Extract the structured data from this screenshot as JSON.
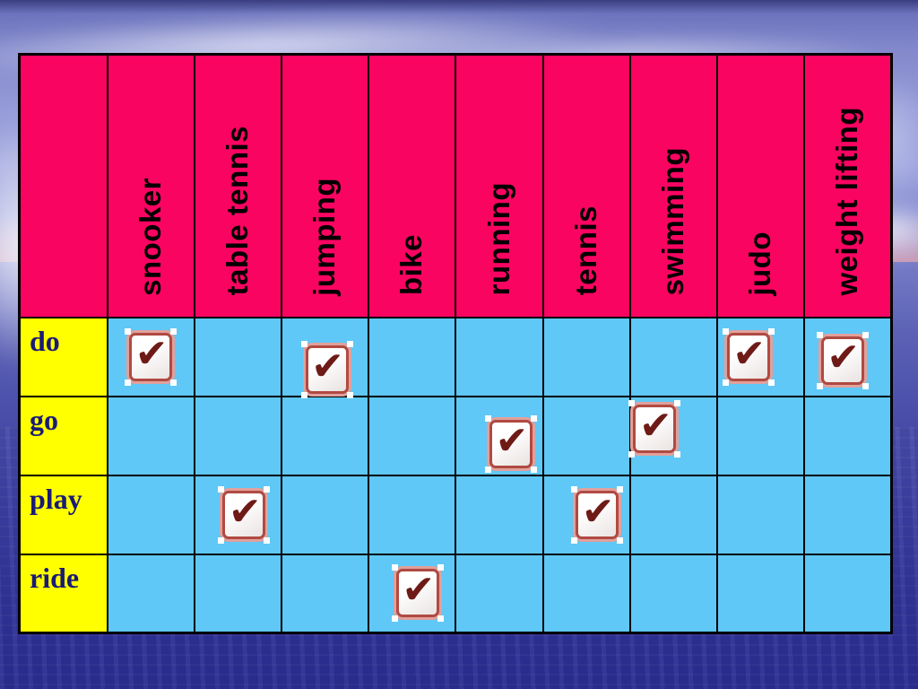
{
  "slide": {
    "background": {
      "sky_color": "#8288CB",
      "cloud_color": "#F0F2FC",
      "water_color": "#2B2D90"
    }
  },
  "table": {
    "colors": {
      "header_bg": "#FA0462",
      "body_bg": "#5FC8F6",
      "label_bg": "#FFFF00",
      "label_text": "#1B1B75",
      "grid_line": "#000000",
      "check_glyph_color": "#6E1A17",
      "check_inner_border": "#B04A42",
      "check_outer_border": "#E2A09B"
    },
    "columns": [
      "snooker",
      "table tennis",
      "jumping",
      "bike",
      "running",
      "tennis",
      "swimming",
      "judo",
      "weight lifting"
    ],
    "rows": [
      {
        "label": "do",
        "checks": [
          1,
          0,
          1,
          0,
          0,
          0,
          0,
          1,
          1
        ]
      },
      {
        "label": "go",
        "checks": [
          0,
          0,
          0,
          0,
          1,
          0,
          1,
          0,
          0
        ]
      },
      {
        "label": "play",
        "checks": [
          0,
          1,
          0,
          0,
          0,
          1,
          0,
          0,
          0
        ]
      },
      {
        "label": "ride",
        "checks": [
          0,
          0,
          0,
          1,
          0,
          0,
          0,
          0,
          0
        ]
      }
    ],
    "check_icon": {
      "glyph": "✔",
      "meaning": "checked"
    }
  }
}
